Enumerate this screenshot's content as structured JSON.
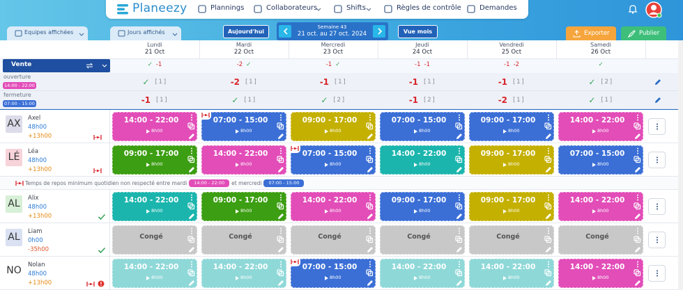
{
  "nav": {
    "logo": "Planeezy",
    "items": [
      "Plannings",
      "Collaborateurs",
      "Shifts",
      "Règles de contrôle",
      "Demandes"
    ]
  },
  "toolbar": {
    "teams": "Equipes affichées",
    "days": "Jours affichés",
    "today": "Aujourd'hui",
    "week_label": "Semaine 43",
    "week_range": "21 oct. au 27 oct. 2024",
    "month_view": "Vue mois",
    "export": "Exporter",
    "publish": "Publier"
  },
  "days": [
    {
      "name": "Lundi",
      "date": "21 Oct"
    },
    {
      "name": "Mardi",
      "date": "22 Oct"
    },
    {
      "name": "Mercredi",
      "date": "23 Oct"
    },
    {
      "name": "Jeudi",
      "date": "24 Oct"
    },
    {
      "name": "Vendredi",
      "date": "25 Oct"
    },
    {
      "name": "Samedi",
      "date": "26 Oct"
    }
  ],
  "team": {
    "name": "Vente",
    "summary": [
      [
        "✓",
        "-1"
      ],
      [
        "-2",
        "✓"
      ],
      [
        "-1",
        "✓"
      ],
      [
        "-1",
        "-1"
      ],
      [
        "-1",
        "-2"
      ],
      [
        "✓"
      ]
    ]
  },
  "posts": [
    {
      "name": "ouverture",
      "hours": "14:00 - 22:00",
      "color": "#e24db8",
      "cells": [
        {
          "status": "✓",
          "count": "[1]"
        },
        {
          "status": "-2",
          "count": "[1]"
        },
        {
          "status": "-1",
          "count": "[1]"
        },
        {
          "status": "-1",
          "count": "[1]"
        },
        {
          "status": "-1",
          "count": "[1]"
        },
        {
          "status": "✓",
          "count": "[2]"
        }
      ]
    },
    {
      "name": "fermeture",
      "hours": "07:00 - 15:00",
      "color": "#3b6fd6",
      "cells": [
        {
          "status": "-1",
          "count": "[1]"
        },
        {
          "status": "✓",
          "count": "[1]"
        },
        {
          "status": "✓",
          "count": "[2]"
        },
        {
          "status": "-1",
          "count": "[2]"
        },
        {
          "status": "-2",
          "count": "[1]"
        },
        {
          "status": "✓",
          "count": "[1]"
        }
      ]
    }
  ],
  "employees": [
    {
      "initials": "AX",
      "name": "Axel",
      "hours": "48h00",
      "balance": "+13h00",
      "avatar_color": "#dcdcea",
      "shifts": [
        {
          "time": "14:00 - 22:00",
          "duration": "8h00",
          "color": "#e24db8"
        },
        {
          "time": "07:00 - 15:00",
          "duration": "8h00",
          "color": "#3b6fd6"
        },
        {
          "time": "09:00 - 17:00",
          "duration": "8h00",
          "color": "#c4b000"
        },
        {
          "time": "07:00 - 15:00",
          "duration": "8h00",
          "color": "#3b6fd6"
        },
        {
          "time": "09:00 - 17:00",
          "duration": "8h00",
          "color": "#3b6fd6"
        },
        {
          "time": "14:00 - 22:00",
          "duration": "8h00",
          "color": "#e24db8"
        }
      ]
    },
    {
      "initials": "LÉ",
      "name": "Léa",
      "hours": "48h00",
      "balance": "+13h00",
      "avatar_color": "#f7d3da",
      "shifts": [
        {
          "time": "09:00 - 17:00",
          "duration": "8h00",
          "color": "#3c9e12"
        },
        {
          "time": "14:00 - 22:00",
          "duration": "8h00",
          "color": "#e24db8"
        },
        {
          "time": "07:00 - 15:00",
          "duration": "8h00",
          "color": "#3b6fd6"
        },
        {
          "time": "14:00 - 22:00",
          "duration": "8h00",
          "color": "#1bb5ad"
        },
        {
          "time": "09:00 - 17:00",
          "duration": "8h00",
          "color": "#c4b000"
        },
        {
          "time": "07:00 - 15:00",
          "duration": "8h00",
          "color": "#3b6fd6"
        }
      ]
    },
    {
      "initials": "AL",
      "name": "Alix",
      "hours": "48h00",
      "balance": "+13h00",
      "avatar_color": "#d7f0d7",
      "shifts": [
        {
          "time": "14:00 - 22:00",
          "duration": "8h00",
          "color": "#1bb5ad"
        },
        {
          "time": "09:00 - 17:00",
          "duration": "8h00",
          "color": "#3c9e12"
        },
        {
          "time": "14:00 - 22:00",
          "duration": "8h00",
          "color": "#e24db8"
        },
        {
          "time": "09:00 - 17:00",
          "duration": "8h00",
          "color": "#3b6fd6"
        },
        {
          "time": "09:00 - 17:00",
          "duration": "8h00",
          "color": "#c4b000"
        },
        {
          "time": "14:00 - 22:00",
          "duration": "8h00",
          "color": "#e24db8"
        }
      ]
    },
    {
      "initials": "AL",
      "name": "Liam",
      "hours": "0h00",
      "balance": "-35h00",
      "avatar_color": "#d9e1f2",
      "shifts": [
        {
          "label": "Congé",
          "color": "#c8c8c8"
        },
        {
          "label": "Congé",
          "color": "#c8c8c8"
        },
        {
          "label": "Congé",
          "color": "#c8c8c8"
        },
        {
          "label": "Congé",
          "color": "#c8c8c8"
        },
        {
          "label": "Congé",
          "color": "#c8c8c8"
        },
        {
          "label": "Congé",
          "color": "#c8c8c8"
        }
      ]
    },
    {
      "initials": "NO",
      "name": "Nolan",
      "hours": "48h00",
      "balance": "+13h00",
      "avatar_color": "#ffffff",
      "shifts": [
        {
          "time": "14:00 - 22:00",
          "duration": "8h00",
          "color": "#8fd8d8"
        },
        {
          "time": "14:00 - 22:00",
          "duration": "8h00",
          "color": "#8fd8d8"
        },
        {
          "time": "07:00 - 15:00",
          "duration": "8h00",
          "color": "#3b6fd6"
        },
        {
          "time": "14:00 - 22:00",
          "duration": "8h00",
          "color": "#8fd8d8"
        },
        {
          "time": "14:00 - 22:00",
          "duration": "8h00",
          "color": "#8fd8d8"
        },
        {
          "time": "14:00 - 22:00",
          "duration": "8h00",
          "color": "#e24db8"
        }
      ]
    }
  ],
  "warning": {
    "text": "Temps de repos minimum quotidien non respecté entre mardi",
    "badge1": "14:00 - 22:00",
    "middle": "et mercredi",
    "badge2": "07:00 - 15:00"
  }
}
